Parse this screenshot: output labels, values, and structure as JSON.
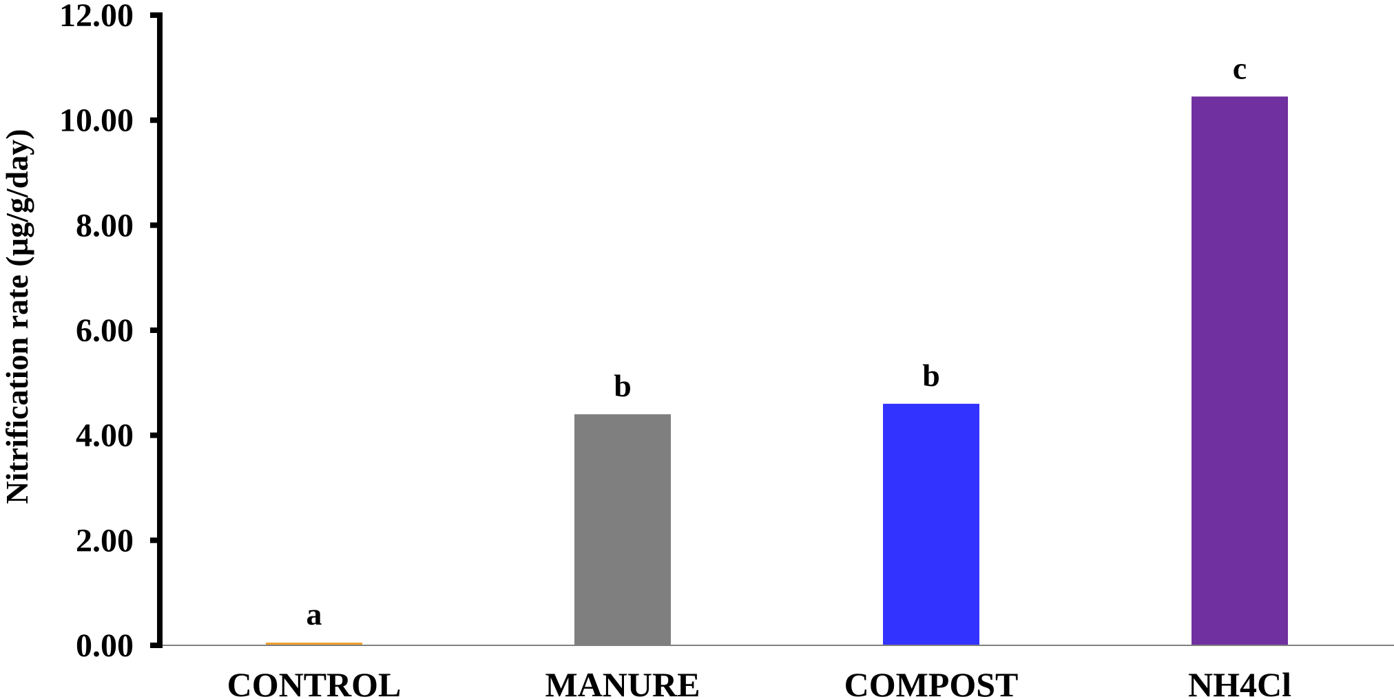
{
  "chart_data": {
    "type": "bar",
    "title": "",
    "xlabel": "",
    "ylabel": "Nitrification rate (µg/g/day)",
    "categories": [
      "CONTROL",
      "MANURE",
      "COMPOST",
      "NH4Cl"
    ],
    "values": [
      0.05,
      4.4,
      4.6,
      10.45
    ],
    "significance_letters": [
      "a",
      "b",
      "b",
      "c"
    ],
    "colors": [
      "#F0A030",
      "#7F7F7F",
      "#3333FF",
      "#7030A0"
    ],
    "ylim": [
      0,
      12
    ],
    "yticks": [
      "0.00",
      "2.00",
      "4.00",
      "6.00",
      "8.00",
      "10.00",
      "12.00"
    ],
    "grid": false,
    "legend": "none"
  }
}
